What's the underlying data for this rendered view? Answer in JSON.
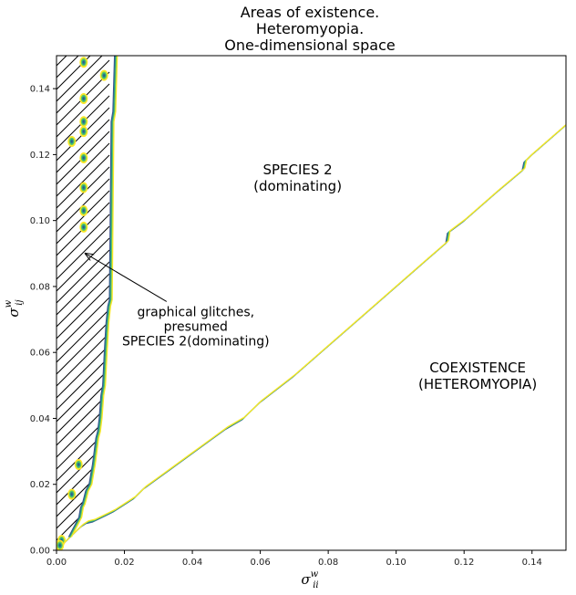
{
  "chart_data": {
    "type": "line",
    "title_lines": [
      "Areas of existence.",
      "Heteromyopia.",
      "One-dimensional space"
    ],
    "xlabel": {
      "base": "σ",
      "sup": "w",
      "sub": "ii"
    },
    "ylabel": {
      "base": "σ",
      "sup": "w",
      "sub": "ij"
    },
    "xlim": [
      0,
      0.15
    ],
    "ylim": [
      0,
      0.15
    ],
    "xticks": [
      "0.00",
      "0.02",
      "0.04",
      "0.06",
      "0.08",
      "0.10",
      "0.12",
      "0.14"
    ],
    "yticks": [
      "0.00",
      "0.02",
      "0.04",
      "0.06",
      "0.08",
      "0.10",
      "0.12",
      "0.14"
    ],
    "grid": false,
    "contour_colors": [
      "#3b528b",
      "#21918c",
      "#5ec962",
      "#fde725"
    ],
    "series": [
      {
        "x": [
          0.001,
          0.002,
          0.003,
          0.004,
          0.005,
          0.006,
          0.0075,
          0.009,
          0.011,
          0.013,
          0.015,
          0.017,
          0.02,
          0.023,
          0.026,
          0.03,
          0.034,
          0.038,
          0.042,
          0.046,
          0.05,
          0.055,
          0.06,
          0.07,
          0.08,
          0.09,
          0.1,
          0.11,
          0.115,
          0.1155,
          0.12,
          0.13,
          0.1375,
          0.138,
          0.14,
          0.15
        ],
        "y": [
          0.001,
          0.002,
          0.003,
          0.004,
          0.005,
          0.006,
          0.0075,
          0.0085,
          0.009,
          0.01,
          0.011,
          0.012,
          0.014,
          0.016,
          0.019,
          0.022,
          0.025,
          0.028,
          0.031,
          0.034,
          0.037,
          0.04,
          0.045,
          0.053,
          0.062,
          0.071,
          0.08,
          0.089,
          0.0935,
          0.0965,
          0.1,
          0.109,
          0.1155,
          0.118,
          0.12,
          0.129
        ]
      },
      {
        "x": [
          0.004,
          0.005,
          0.006,
          0.007,
          0.0075,
          0.008,
          0.0085,
          0.009,
          0.01,
          0.0105,
          0.011,
          0.0115,
          0.012,
          0.0125,
          0.013,
          0.0135,
          0.014,
          0.0145,
          0.015,
          0.0155,
          0.016,
          0.0165,
          0.017,
          0.0175
        ],
        "y": [
          0.004,
          0.006,
          0.008,
          0.01,
          0.013,
          0.014,
          0.016,
          0.018,
          0.02,
          0.023,
          0.026,
          0.03,
          0.034,
          0.036,
          0.04,
          0.047,
          0.05,
          0.06,
          0.069,
          0.074,
          0.076,
          0.13,
          0.133,
          0.15
        ]
      }
    ],
    "hatched_region": "left of the vertical boundary",
    "glitch_markers": [
      {
        "x": 0.008,
        "y": 0.148
      },
      {
        "x": 0.014,
        "y": 0.144
      },
      {
        "x": 0.008,
        "y": 0.137
      },
      {
        "x": 0.008,
        "y": 0.13
      },
      {
        "x": 0.008,
        "y": 0.127
      },
      {
        "x": 0.0045,
        "y": 0.124
      },
      {
        "x": 0.008,
        "y": 0.119
      },
      {
        "x": 0.008,
        "y": 0.11
      },
      {
        "x": 0.008,
        "y": 0.103
      },
      {
        "x": 0.008,
        "y": 0.098
      },
      {
        "x": 0.0065,
        "y": 0.026
      },
      {
        "x": 0.0045,
        "y": 0.017
      },
      {
        "x": 0.0015,
        "y": 0.003
      },
      {
        "x": 0.001,
        "y": 0.0015
      }
    ],
    "annotations": {
      "species2": [
        "SPECIES 2",
        "(dominating)"
      ],
      "coexistence": [
        "COEXISTENCE",
        "(HETEROMYOPIA)"
      ],
      "glitches": [
        "graphical glitches,",
        "presumed",
        "SPECIES 2(dominating)"
      ]
    },
    "annotation_positions": {
      "species2": {
        "x": 0.071,
        "y": 0.114
      },
      "coexistence": {
        "x": 0.124,
        "y": 0.054
      },
      "glitches": {
        "x": 0.041,
        "y": 0.071
      },
      "glitches_arrow_tip": {
        "x": 0.0085,
        "y": 0.09
      }
    }
  }
}
